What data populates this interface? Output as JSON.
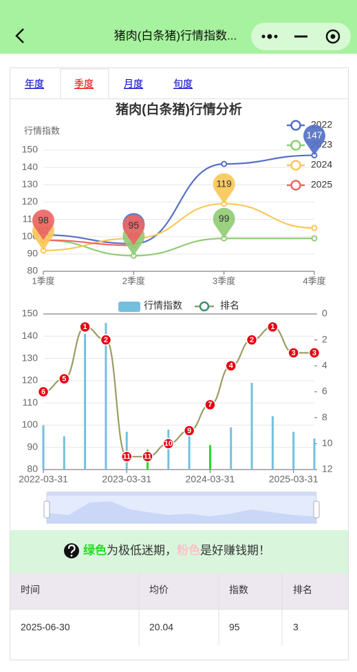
{
  "header": {
    "title": "猪肉(白条猪)行情指数..."
  },
  "tabs": {
    "items": [
      "年度",
      "季度",
      "月度",
      "旬度"
    ],
    "active": 1
  },
  "chart_data": [
    {
      "type": "line",
      "title": "猪肉(白条猪)行情分析",
      "y_label": "行情指数",
      "categories": [
        "1季度",
        "2季度",
        "3季度",
        "4季度"
      ],
      "ylim": [
        80,
        150
      ],
      "yticks": [
        80,
        90,
        100,
        110,
        120,
        130,
        140,
        150
      ],
      "grid": true,
      "smooth": true,
      "mark_points": true,
      "series": [
        {
          "name": "2022",
          "color": "#5470c6",
          "values": [
            101,
            96,
            142,
            147
          ]
        },
        {
          "name": "2023",
          "color": "#91cc75",
          "values": [
            98,
            89,
            99,
            99
          ]
        },
        {
          "name": "2024",
          "color": "#fac858",
          "values": [
            92,
            99,
            119,
            105
          ]
        },
        {
          "name": "2025",
          "color": "#ee6666",
          "values": [
            98,
            95,
            null,
            null
          ]
        }
      ]
    },
    {
      "type": "bar_line",
      "categories": [
        "2022-03-31",
        null,
        null,
        null,
        "2023-03-31",
        null,
        null,
        null,
        "2024-03-31",
        null,
        null,
        null,
        "2025-03-31",
        null
      ],
      "ylim": [
        80,
        150
      ],
      "yticks": [
        80,
        90,
        100,
        110,
        120,
        130,
        140,
        150
      ],
      "grid": true,
      "y2lim": [
        0,
        12
      ],
      "y2ticks": [
        0,
        2,
        4,
        6,
        8,
        10,
        12
      ],
      "y2_inverse": true,
      "smooth": true,
      "series": [
        {
          "name": "行情指数",
          "type": "bar",
          "color": "#73c0de",
          "colors": [
            "#73c0de",
            "#73c0de",
            "#73c0de",
            "#73c0de",
            "#73c0de",
            "#22dd22",
            "#73c0de",
            "#73c0de",
            "#22dd22",
            "#73c0de",
            "#73c0de",
            "#73c0de",
            "#73c0de",
            "#73c0de"
          ],
          "values": [
            100,
            95,
            141,
            146,
            97,
            89,
            98,
            96,
            91,
            99,
            119,
            104,
            97,
            94
          ]
        },
        {
          "name": "排名",
          "type": "line",
          "axis": "y2",
          "color": "#9a9c62",
          "label_color": "#e60012",
          "values": [
            6,
            5,
            1,
            2,
            11,
            11,
            10,
            9,
            7,
            4,
            2,
            1,
            3,
            3
          ]
        }
      ]
    }
  ],
  "notice": {
    "parts": [
      "绿色",
      "为极低迷期，",
      "粉色",
      "是好赚钱期！"
    ],
    "colors": [
      "#22dd22",
      "#333333",
      "#ffc0cb",
      "#333333"
    ]
  },
  "table": {
    "header": [
      "时间",
      "均价",
      "指数",
      "排名"
    ],
    "rows": [
      [
        "2025-06-30",
        "20.04",
        "95",
        "3"
      ]
    ]
  }
}
